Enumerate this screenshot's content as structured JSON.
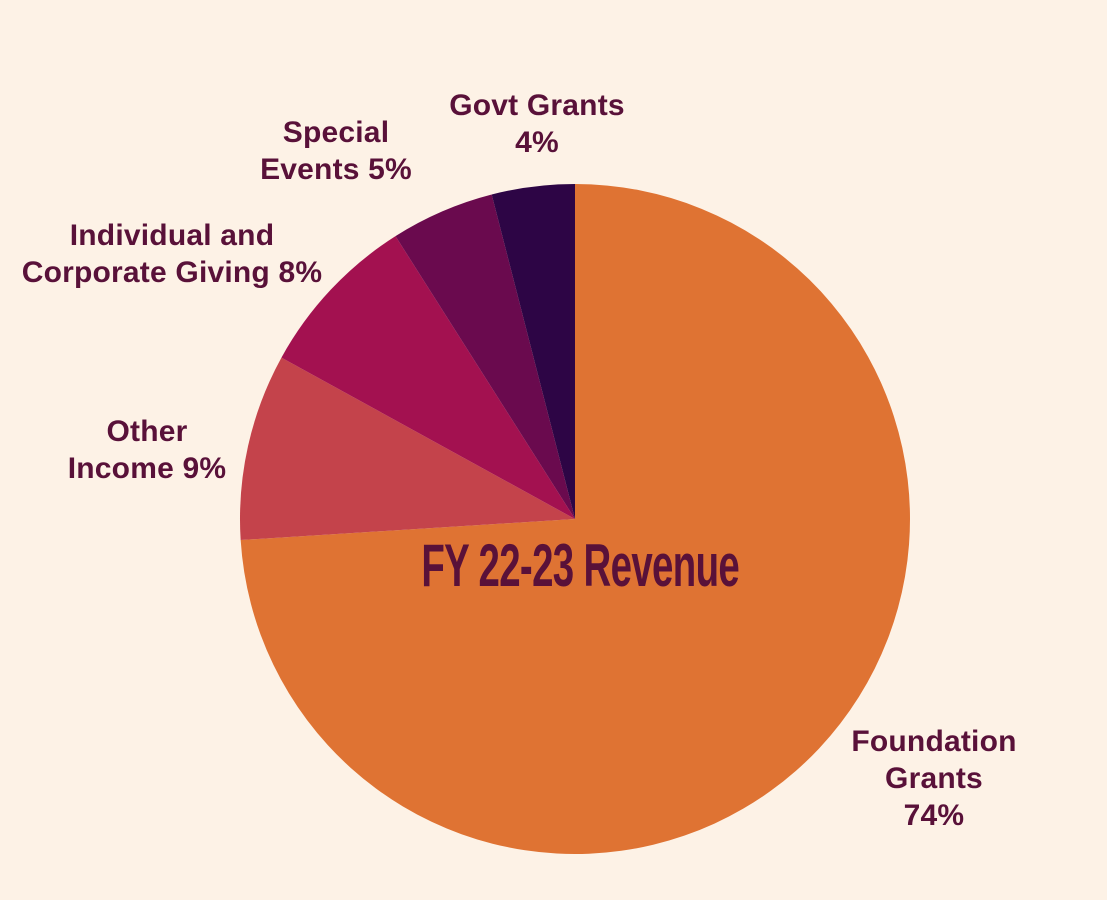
{
  "chart_data": {
    "type": "pie",
    "title": "FY 22-23 Revenue",
    "unit": "%",
    "start_angle_deg": 0,
    "direction": "clockwise",
    "legend": "none (direct labels around pie)",
    "background": "#FDF2E6",
    "label_color": "#591139",
    "slices": [
      {
        "id": "foundation-grants",
        "label": "Foundation Grants",
        "value": 74,
        "color": "#DF7333",
        "display": "Foundation\nGrants\n74%"
      },
      {
        "id": "other-income",
        "label": "Other Income",
        "value": 9,
        "color": "#C4434B",
        "display": "Other\nIncome 9%"
      },
      {
        "id": "individual-corporate-giving",
        "label": "Individual and Corporate Giving",
        "value": 8,
        "color": "#A31150",
        "display": "Individual and\nCorporate Giving 8%"
      },
      {
        "id": "special-events",
        "label": "Special Events",
        "value": 5,
        "color": "#6A0A4E",
        "display": "Special\nEvents 5%"
      },
      {
        "id": "govt-grants",
        "label": "Govt Grants",
        "value": 4,
        "color": "#2D0545",
        "display": "Govt Grants\n4%"
      }
    ]
  }
}
